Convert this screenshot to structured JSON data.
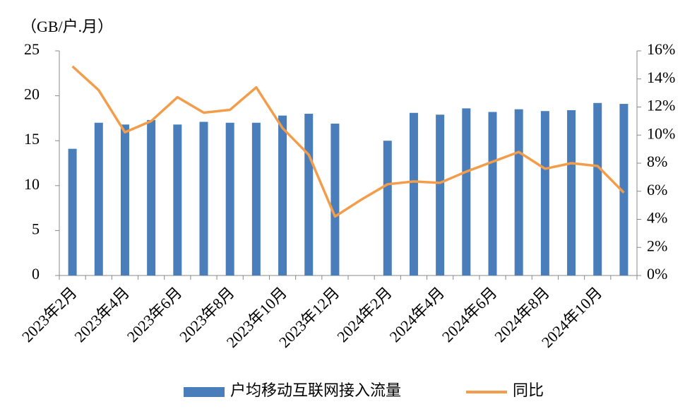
{
  "chart_data": {
    "type": "bar_line",
    "unit_label": "（GB/户.月）",
    "categories": [
      "2023年2月",
      null,
      "2023年4月",
      null,
      "2023年6月",
      null,
      "2023年8月",
      null,
      "2023年10月",
      null,
      "2023年12月",
      null,
      "2024年2月",
      null,
      "2024年4月",
      null,
      "2024年6月",
      null,
      "2024年8月",
      null,
      "2024年10月",
      null
    ],
    "series": [
      {
        "name": "户均移动互联网接入流量",
        "color": "#4a7ebb",
        "type": "bar",
        "values": [
          14.1,
          17.0,
          16.8,
          17.3,
          16.8,
          17.1,
          17.0,
          17.0,
          17.8,
          18.0,
          16.9,
          null,
          15.0,
          18.1,
          17.9,
          18.6,
          18.2,
          18.5,
          18.3,
          18.4,
          19.2,
          19.1
        ]
      },
      {
        "name": "同比",
        "color": "#f39c4a",
        "type": "line",
        "axis": "y2",
        "values": [
          14.9,
          13.2,
          10.2,
          11.0,
          12.7,
          11.6,
          11.8,
          13.4,
          10.5,
          8.6,
          4.2,
          5.4,
          6.5,
          6.7,
          6.6,
          7.4,
          8.1,
          8.8,
          7.6,
          8.0,
          7.8,
          5.9
        ]
      }
    ],
    "ylim": [
      0,
      25
    ],
    "yticks": [
      0,
      5,
      10,
      15,
      20,
      25
    ],
    "y2lim": [
      0,
      16
    ],
    "y2ticks": [
      {
        "value": 0,
        "label": "0%"
      },
      {
        "value": 2,
        "label": "2%"
      },
      {
        "value": 4,
        "label": "4%"
      },
      {
        "value": 6,
        "label": "6%"
      },
      {
        "value": 8,
        "label": "8%"
      },
      {
        "value": 10,
        "label": "10%"
      },
      {
        "value": 12,
        "label": "12%"
      },
      {
        "value": 14,
        "label": "14%"
      },
      {
        "value": 16,
        "label": "16%"
      }
    ],
    "grid": false,
    "legend": "bottom"
  }
}
